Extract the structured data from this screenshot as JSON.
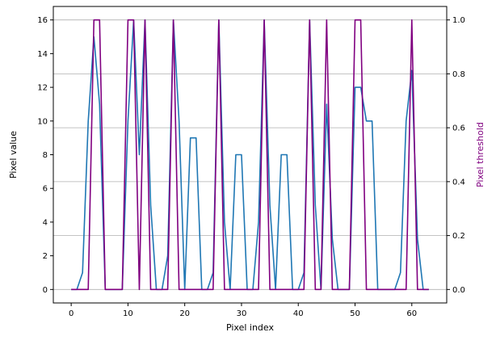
{
  "chart_data": {
    "type": "line",
    "xlabel": "Pixel index",
    "ylabel_left": "Pixel value",
    "ylabel_right": "Pixel threshold",
    "xlim": [
      -3.15,
      66.15
    ],
    "ylim_left": [
      -0.8,
      16.8
    ],
    "ylim_right": [
      -0.05,
      1.05
    ],
    "x_ticks": [
      0,
      10,
      20,
      30,
      40,
      50,
      60
    ],
    "y_ticks_left": [
      0,
      2,
      4,
      6,
      8,
      10,
      12,
      14,
      16
    ],
    "y_ticks_right": [
      0.0,
      0.2,
      0.4,
      0.6,
      0.8,
      1.0
    ],
    "grid": "horizontal lines at right-axis ticks",
    "colors": {
      "value_line": "#1f77b4",
      "threshold_line": "#800080",
      "right_label": "#800080",
      "grid": "#b0b0b0"
    },
    "series": [
      {
        "axis": "left",
        "values": [
          0,
          0,
          1,
          10,
          15,
          11,
          0,
          0,
          0,
          0,
          10,
          16,
          8,
          16,
          5,
          0,
          0,
          2,
          16,
          10,
          0,
          9,
          9,
          0,
          0,
          1,
          16,
          4,
          0,
          8,
          8,
          0,
          0,
          4,
          16,
          5,
          0,
          8,
          8,
          0,
          0,
          1,
          16,
          5,
          0,
          11,
          3,
          0,
          0,
          0,
          12,
          12,
          10,
          10,
          0,
          0,
          0,
          0,
          1,
          10,
          13,
          3,
          0,
          0
        ]
      },
      {
        "axis": "right",
        "values": [
          0,
          0,
          0,
          0,
          1,
          1,
          0,
          0,
          0,
          0,
          1,
          1,
          0,
          1,
          0,
          0,
          0,
          0,
          1,
          0,
          0,
          0,
          0,
          0,
          0,
          0,
          1,
          0,
          0,
          0,
          0,
          0,
          0,
          0,
          1,
          0,
          0,
          0,
          0,
          0,
          0,
          0,
          1,
          0,
          0,
          1,
          0,
          0,
          0,
          0,
          1,
          1,
          0,
          0,
          0,
          0,
          0,
          0,
          0,
          0,
          1,
          0,
          0,
          0
        ]
      }
    ]
  }
}
